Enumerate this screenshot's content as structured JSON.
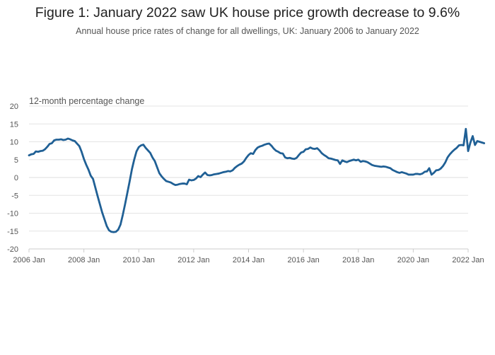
{
  "chart_data": {
    "type": "line",
    "title": "Figure 1: January 2022 saw UK house price growth decrease to 9.6%",
    "subtitle": "Annual house price rates of change for all dwellings, UK: January 2006 to January 2022",
    "ylabel": "12-month percentage change",
    "xlabel": "",
    "ylim": [
      -20,
      20
    ],
    "yticks": [
      20,
      15,
      10,
      5,
      0,
      -5,
      -10,
      -15,
      -20
    ],
    "xlim": [
      "2006-01",
      "2022-01"
    ],
    "xticks": [
      "2006 Jan",
      "2008 Jan",
      "2010 Jan",
      "2012 Jan",
      "2014 Jan",
      "2016 Jan",
      "2018 Jan",
      "2020 Jan",
      "2022 Jan"
    ],
    "color": "#206095",
    "series": [
      {
        "name": "Annual house price rate of change (%)",
        "start": "2006-01",
        "frequency": "monthly",
        "values": [
          6.2,
          6.5,
          6.6,
          7.3,
          7.2,
          7.4,
          7.5,
          7.9,
          8.6,
          9.4,
          9.6,
          10.4,
          10.6,
          10.6,
          10.7,
          10.5,
          10.6,
          10.9,
          10.7,
          10.4,
          10.2,
          9.5,
          8.8,
          7.2,
          5.2,
          3.6,
          2.2,
          0.5,
          -0.4,
          -2.8,
          -5.2,
          -7.5,
          -9.8,
          -11.7,
          -13.6,
          -14.8,
          -15.2,
          -15.3,
          -15.2,
          -14.6,
          -13.2,
          -10.5,
          -7.5,
          -4.3,
          -1.1,
          2.3,
          5.0,
          7.3,
          8.5,
          9.0,
          9.2,
          8.3,
          7.6,
          6.9,
          5.6,
          4.6,
          2.9,
          1.2,
          0.3,
          -0.4,
          -1.0,
          -1.2,
          -1.4,
          -1.8,
          -2.1,
          -2.0,
          -1.8,
          -1.7,
          -1.7,
          -1.9,
          -0.6,
          -0.8,
          -0.7,
          -0.3,
          0.4,
          0.1,
          0.8,
          1.4,
          0.7,
          0.6,
          0.7,
          0.9,
          1.0,
          1.1,
          1.3,
          1.5,
          1.6,
          1.8,
          1.7,
          2.0,
          2.7,
          3.2,
          3.6,
          3.9,
          4.5,
          5.5,
          6.3,
          6.8,
          6.6,
          7.7,
          8.4,
          8.7,
          8.9,
          9.2,
          9.4,
          9.5,
          8.9,
          8.1,
          7.5,
          7.2,
          6.8,
          6.7,
          5.6,
          5.4,
          5.5,
          5.3,
          5.2,
          5.5,
          6.3,
          7.0,
          7.2,
          7.9,
          8.0,
          8.4,
          8.1,
          8.0,
          8.2,
          7.6,
          6.8,
          6.3,
          5.9,
          5.4,
          5.3,
          5.1,
          4.9,
          4.8,
          3.8,
          4.8,
          4.5,
          4.3,
          4.6,
          4.8,
          5.0,
          4.8,
          5.0,
          4.4,
          4.6,
          4.5,
          4.3,
          3.9,
          3.5,
          3.3,
          3.2,
          3.1,
          3.0,
          3.1,
          3.0,
          2.8,
          2.6,
          2.1,
          1.8,
          1.5,
          1.3,
          1.5,
          1.3,
          1.1,
          0.8,
          0.8,
          0.8,
          1.0,
          1.0,
          0.9,
          1.1,
          1.6,
          1.7,
          2.6,
          0.8,
          1.3,
          2.0,
          2.1,
          2.5,
          3.2,
          4.2,
          5.6,
          6.5,
          7.2,
          7.8,
          8.3,
          9.0,
          9.1,
          9.0,
          13.6,
          7.4,
          9.8,
          11.6,
          9.1,
          10.2,
          10.0,
          9.8,
          9.6
        ]
      }
    ]
  }
}
